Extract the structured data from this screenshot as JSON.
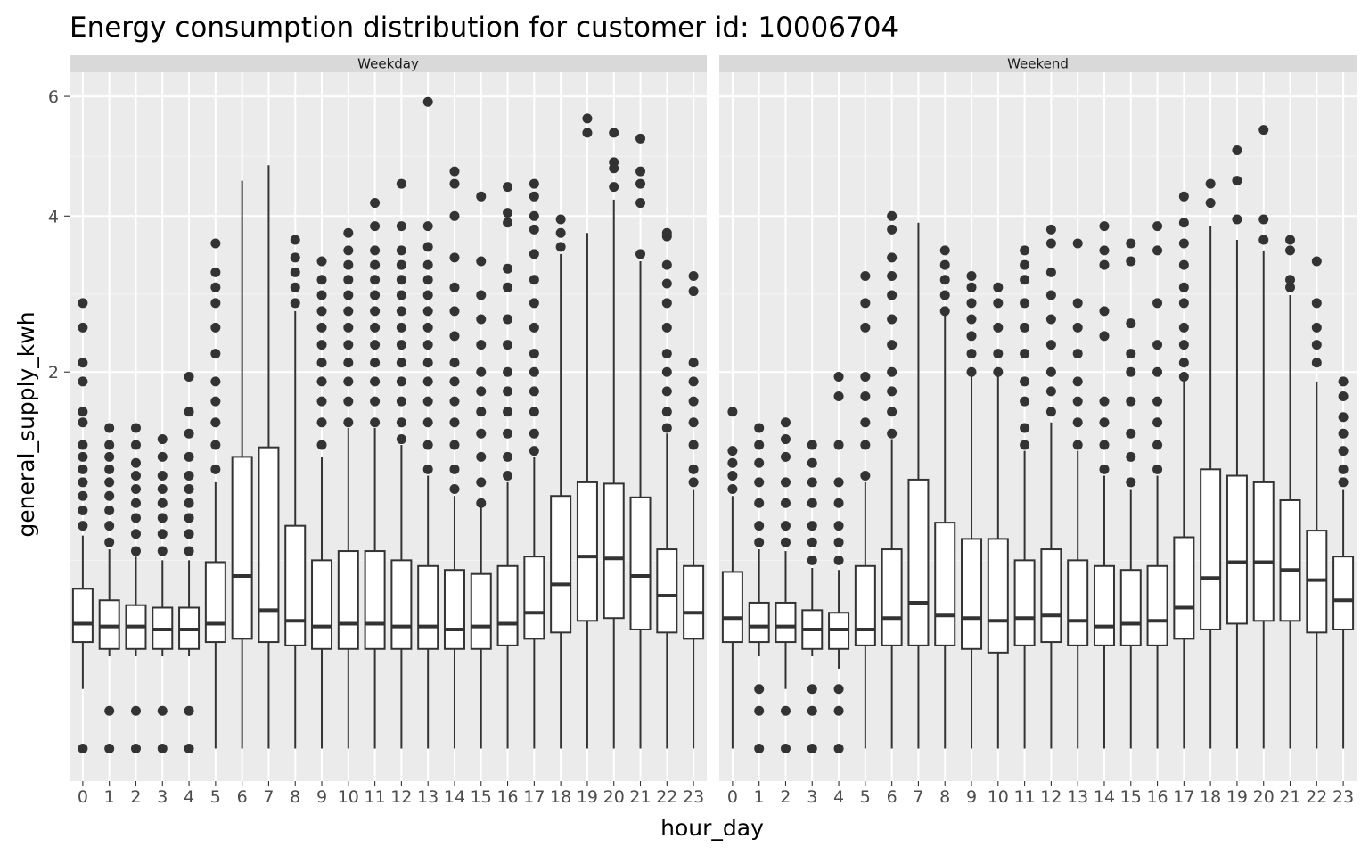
{
  "chart_data": {
    "type": "boxplot",
    "title": "Energy consumption distribution for customer id: 10006704",
    "xlabel": "hour_day",
    "ylabel": "general_supply_kwh",
    "y_scale": "sqrt",
    "ylim": [
      0,
      6.6
    ],
    "y_ticks": [
      2,
      4,
      6
    ],
    "grid": true,
    "categories": [
      "0",
      "1",
      "2",
      "3",
      "4",
      "5",
      "6",
      "7",
      "8",
      "9",
      "10",
      "11",
      "12",
      "13",
      "14",
      "15",
      "16",
      "17",
      "18",
      "19",
      "20",
      "21",
      "22",
      "23"
    ],
    "panels": [
      {
        "name": "Weekday",
        "boxes": [
          {
            "hour": "0",
            "lower": 0.05,
            "q1": 0.16,
            "median": 0.22,
            "q3": 0.36,
            "upper": 0.64,
            "outliers": [
              0.0,
              0.7,
              0.8,
              0.9,
              1.0,
              1.1,
              1.2,
              1.3,
              1.5,
              1.6,
              1.9,
              2.1,
              2.5,
              2.8
            ]
          },
          {
            "hour": "1",
            "lower": 0.12,
            "q1": 0.14,
            "median": 0.21,
            "q3": 0.31,
            "upper": 0.56,
            "outliers": [
              0.0,
              0.02,
              0.6,
              0.7,
              0.8,
              0.9,
              1.0,
              1.1,
              1.2,
              1.3,
              1.45
            ]
          },
          {
            "hour": "2",
            "lower": 0.12,
            "q1": 0.14,
            "median": 0.21,
            "q3": 0.29,
            "upper": 0.52,
            "outliers": [
              0.0,
              0.02,
              0.55,
              0.65,
              0.75,
              0.85,
              0.95,
              1.05,
              1.15,
              1.3,
              1.45
            ]
          },
          {
            "hour": "3",
            "lower": 0.12,
            "q1": 0.14,
            "median": 0.2,
            "q3": 0.28,
            "upper": 0.5,
            "outliers": [
              0.0,
              0.02,
              0.55,
              0.65,
              0.75,
              0.85,
              0.95,
              1.05,
              1.2,
              1.35
            ]
          },
          {
            "hour": "4",
            "lower": 0.12,
            "q1": 0.14,
            "median": 0.2,
            "q3": 0.28,
            "upper": 0.5,
            "outliers": [
              0.0,
              0.02,
              0.55,
              0.65,
              0.75,
              0.85,
              0.95,
              1.05,
              1.2,
              1.4,
              1.6,
              1.95
            ]
          },
          {
            "hour": "5",
            "lower": 0.0,
            "q1": 0.16,
            "median": 0.22,
            "q3": 0.49,
            "upper": 1.0,
            "outliers": [
              1.1,
              1.3,
              1.5,
              1.7,
              1.9,
              2.2,
              2.5,
              2.8,
              3.0,
              3.2,
              3.6
            ]
          },
          {
            "hour": "6",
            "lower": 0.0,
            "q1": 0.17,
            "median": 0.42,
            "q3": 1.2,
            "upper": 4.55,
            "outliers": []
          },
          {
            "hour": "7",
            "lower": 0.0,
            "q1": 0.16,
            "median": 0.27,
            "q3": 1.28,
            "upper": 4.8,
            "outliers": []
          },
          {
            "hour": "8",
            "lower": 0.0,
            "q1": 0.15,
            "median": 0.23,
            "q3": 0.7,
            "upper": 2.7,
            "outliers": [
              2.8,
              3.0,
              3.2,
              3.4,
              3.65
            ]
          },
          {
            "hour": "9",
            "lower": 0.0,
            "q1": 0.14,
            "median": 0.21,
            "q3": 0.5,
            "upper": 1.2,
            "outliers": [
              1.3,
              1.5,
              1.7,
              1.9,
              2.1,
              2.3,
              2.5,
              2.7,
              2.9,
              3.1,
              3.35
            ]
          },
          {
            "hour": "10",
            "lower": 0.0,
            "q1": 0.14,
            "median": 0.22,
            "q3": 0.55,
            "upper": 1.45,
            "outliers": [
              1.5,
              1.7,
              1.9,
              2.1,
              2.3,
              2.5,
              2.7,
              2.9,
              3.1,
              3.3,
              3.5,
              3.75
            ]
          },
          {
            "hour": "11",
            "lower": 0.0,
            "q1": 0.14,
            "median": 0.22,
            "q3": 0.55,
            "upper": 1.45,
            "outliers": [
              1.5,
              1.7,
              1.9,
              2.1,
              2.3,
              2.5,
              2.7,
              2.9,
              3.1,
              3.3,
              3.5,
              3.85,
              4.2
            ]
          },
          {
            "hour": "12",
            "lower": 0.0,
            "q1": 0.14,
            "median": 0.21,
            "q3": 0.5,
            "upper": 1.3,
            "outliers": [
              1.35,
              1.5,
              1.7,
              1.9,
              2.1,
              2.3,
              2.5,
              2.7,
              2.9,
              3.1,
              3.3,
              3.5,
              3.85,
              4.5
            ]
          },
          {
            "hour": "13",
            "lower": 0.0,
            "q1": 0.14,
            "median": 0.21,
            "q3": 0.47,
            "upper": 1.05,
            "outliers": [
              1.1,
              1.3,
              1.5,
              1.7,
              1.9,
              2.1,
              2.3,
              2.5,
              2.7,
              2.9,
              3.1,
              3.3,
              3.55,
              3.85,
              5.9
            ]
          },
          {
            "hour": "14",
            "lower": 0.0,
            "q1": 0.14,
            "median": 0.2,
            "q3": 0.45,
            "upper": 0.9,
            "outliers": [
              0.95,
              1.1,
              1.3,
              1.5,
              1.7,
              1.9,
              2.1,
              2.4,
              2.7,
              3.0,
              3.4,
              4.0,
              4.5,
              4.7
            ]
          },
          {
            "hour": "15",
            "lower": 0.0,
            "q1": 0.14,
            "median": 0.21,
            "q3": 0.43,
            "upper": 0.82,
            "outliers": [
              0.85,
              1.0,
              1.2,
              1.4,
              1.6,
              1.8,
              2.0,
              2.3,
              2.6,
              2.9,
              3.35,
              4.3
            ]
          },
          {
            "hour": "16",
            "lower": 0.0,
            "q1": 0.15,
            "median": 0.22,
            "q3": 0.47,
            "upper": 1.0,
            "outliers": [
              1.05,
              1.2,
              1.4,
              1.6,
              1.8,
              2.0,
              2.3,
              2.6,
              3.0,
              3.25,
              3.9,
              4.05,
              4.45
            ]
          },
          {
            "hour": "17",
            "lower": 0.0,
            "q1": 0.17,
            "median": 0.26,
            "q3": 0.52,
            "upper": 1.2,
            "outliers": [
              1.25,
              1.4,
              1.6,
              1.8,
              2.0,
              2.2,
              2.5,
              2.8,
              3.1,
              3.45,
              3.8,
              4.0,
              4.3,
              4.5
            ]
          },
          {
            "hour": "18",
            "lower": 0.0,
            "q1": 0.19,
            "median": 0.38,
            "q3": 0.9,
            "upper": 3.45,
            "outliers": [
              3.55,
              3.75,
              3.95
            ]
          },
          {
            "hour": "19",
            "lower": 0.0,
            "q1": 0.23,
            "median": 0.52,
            "q3": 1.0,
            "upper": 3.75,
            "outliers": [
              5.35,
              5.6
            ]
          },
          {
            "hour": "20",
            "lower": 0.0,
            "q1": 0.24,
            "median": 0.51,
            "q3": 0.99,
            "upper": 4.25,
            "outliers": [
              4.45,
              4.75,
              4.85,
              5.35
            ]
          },
          {
            "hour": "21",
            "lower": 0.0,
            "q1": 0.2,
            "median": 0.42,
            "q3": 0.89,
            "upper": 3.35,
            "outliers": [
              3.45,
              4.2,
              4.5,
              4.7,
              5.25
            ]
          },
          {
            "hour": "22",
            "lower": 0.0,
            "q1": 0.19,
            "median": 0.33,
            "q3": 0.56,
            "upper": 1.4,
            "outliers": [
              1.45,
              1.6,
              1.8,
              2.0,
              2.2,
              2.5,
              2.8,
              3.05,
              3.3,
              3.7,
              3.75
            ]
          },
          {
            "hour": "23",
            "lower": 0.0,
            "q1": 0.17,
            "median": 0.26,
            "q3": 0.47,
            "upper": 0.95,
            "outliers": [
              1.0,
              1.1,
              1.3,
              1.5,
              1.7,
              1.9,
              2.1,
              2.95,
              3.15
            ]
          }
        ]
      },
      {
        "name": "Weekend",
        "boxes": [
          {
            "hour": "0",
            "lower": 0.0,
            "q1": 0.16,
            "median": 0.24,
            "q3": 0.44,
            "upper": 0.9,
            "outliers": [
              0.95,
              1.05,
              1.15,
              1.25,
              1.6
            ]
          },
          {
            "hour": "1",
            "lower": 0.12,
            "q1": 0.16,
            "median": 0.21,
            "q3": 0.3,
            "upper": 0.56,
            "outliers": [
              0.0,
              0.02,
              0.05,
              0.6,
              0.7,
              0.85,
              1.0,
              1.15,
              1.3,
              1.45
            ]
          },
          {
            "hour": "2",
            "lower": 0.05,
            "q1": 0.16,
            "median": 0.21,
            "q3": 0.3,
            "upper": 0.55,
            "outliers": [
              0.0,
              0.02,
              0.6,
              0.7,
              0.85,
              1.0,
              1.2,
              1.35,
              1.5
            ]
          },
          {
            "hour": "3",
            "lower": 0.12,
            "q1": 0.14,
            "median": 0.2,
            "q3": 0.27,
            "upper": 0.46,
            "outliers": [
              0.0,
              0.02,
              0.05,
              0.5,
              0.6,
              0.7,
              0.85,
              1.0,
              1.15,
              1.3
            ]
          },
          {
            "hour": "4",
            "lower": 0.09,
            "q1": 0.14,
            "median": 0.2,
            "q3": 0.26,
            "upper": 0.45,
            "outliers": [
              0.0,
              0.02,
              0.05,
              0.5,
              0.6,
              0.7,
              0.85,
              1.0,
              1.3,
              1.75,
              1.95
            ]
          },
          {
            "hour": "5",
            "lower": 0.0,
            "q1": 0.15,
            "median": 0.2,
            "q3": 0.47,
            "upper": 1.0,
            "outliers": [
              1.05,
              1.3,
              1.5,
              1.75,
              1.95,
              2.5,
              2.8,
              3.15
            ]
          },
          {
            "hour": "6",
            "lower": 0.0,
            "q1": 0.15,
            "median": 0.24,
            "q3": 0.56,
            "upper": 1.35,
            "outliers": [
              1.4,
              1.6,
              1.8,
              2.0,
              2.3,
              2.6,
              2.9,
              3.15,
              3.4,
              3.8,
              4.0
            ]
          },
          {
            "hour": "7",
            "lower": 0.0,
            "q1": 0.15,
            "median": 0.3,
            "q3": 1.02,
            "upper": 3.9,
            "outliers": []
          },
          {
            "hour": "8",
            "lower": 0.0,
            "q1": 0.15,
            "median": 0.25,
            "q3": 0.72,
            "upper": 2.65,
            "outliers": [
              2.7,
              2.9,
              3.1,
              3.3,
              3.5
            ]
          },
          {
            "hour": "9",
            "lower": 0.0,
            "q1": 0.14,
            "median": 0.24,
            "q3": 0.62,
            "upper": 1.95,
            "outliers": [
              2.0,
              2.2,
              2.4,
              2.6,
              2.8,
              3.0,
              3.15
            ]
          },
          {
            "hour": "10",
            "lower": 0.0,
            "q1": 0.13,
            "median": 0.23,
            "q3": 0.62,
            "upper": 1.95,
            "outliers": [
              2.0,
              2.2,
              2.5,
              2.8,
              3.0
            ]
          },
          {
            "hour": "11",
            "lower": 0.0,
            "q1": 0.15,
            "median": 0.24,
            "q3": 0.5,
            "upper": 1.25,
            "outliers": [
              1.3,
              1.45,
              1.7,
              1.9,
              2.2,
              2.5,
              2.8,
              3.1,
              3.3,
              3.5
            ]
          },
          {
            "hour": "12",
            "lower": 0.0,
            "q1": 0.16,
            "median": 0.25,
            "q3": 0.56,
            "upper": 1.5,
            "outliers": [
              1.6,
              1.8,
              2.0,
              2.3,
              2.6,
              2.9,
              3.2,
              3.6,
              3.8
            ]
          },
          {
            "hour": "13",
            "lower": 0.0,
            "q1": 0.15,
            "median": 0.23,
            "q3": 0.5,
            "upper": 1.25,
            "outliers": [
              1.3,
              1.5,
              1.7,
              1.9,
              2.2,
              2.5,
              2.8,
              3.6
            ]
          },
          {
            "hour": "14",
            "lower": 0.0,
            "q1": 0.15,
            "median": 0.21,
            "q3": 0.47,
            "upper": 1.05,
            "outliers": [
              1.1,
              1.3,
              1.5,
              1.7,
              2.4,
              2.7,
              3.3,
              3.5,
              3.85
            ]
          },
          {
            "hour": "15",
            "lower": 0.0,
            "q1": 0.15,
            "median": 0.22,
            "q3": 0.45,
            "upper": 0.95,
            "outliers": [
              1.0,
              1.2,
              1.4,
              1.7,
              2.0,
              2.2,
              2.55,
              3.35,
              3.6
            ]
          },
          {
            "hour": "16",
            "lower": 0.0,
            "q1": 0.15,
            "median": 0.23,
            "q3": 0.47,
            "upper": 1.05,
            "outliers": [
              1.1,
              1.3,
              1.5,
              1.7,
              2.0,
              2.3,
              2.8,
              3.5,
              3.85
            ]
          },
          {
            "hour": "17",
            "lower": 0.0,
            "q1": 0.17,
            "median": 0.28,
            "q3": 0.63,
            "upper": 1.9,
            "outliers": [
              1.95,
              2.1,
              2.3,
              2.5,
              2.8,
              3.0,
              3.3,
              3.6,
              3.9,
              4.3
            ]
          },
          {
            "hour": "18",
            "lower": 0.0,
            "q1": 0.2,
            "median": 0.41,
            "q3": 1.1,
            "upper": 3.85,
            "outliers": [
              4.2,
              4.5
            ]
          },
          {
            "hour": "19",
            "lower": 0.0,
            "q1": 0.22,
            "median": 0.49,
            "q3": 1.05,
            "upper": 3.65,
            "outliers": [
              3.95,
              4.55,
              5.05
            ]
          },
          {
            "hour": "20",
            "lower": 0.0,
            "q1": 0.23,
            "median": 0.49,
            "q3": 1.0,
            "upper": 3.5,
            "outliers": [
              3.65,
              3.95,
              5.4
            ]
          },
          {
            "hour": "21",
            "lower": 0.0,
            "q1": 0.23,
            "median": 0.45,
            "q3": 0.87,
            "upper": 2.9,
            "outliers": [
              3.0,
              3.1,
              3.5,
              3.65
            ]
          },
          {
            "hour": "22",
            "lower": 0.0,
            "q1": 0.19,
            "median": 0.4,
            "q3": 0.67,
            "upper": 1.9,
            "outliers": [
              2.1,
              2.3,
              2.5,
              2.8,
              3.35
            ]
          },
          {
            "hour": "23",
            "lower": 0.0,
            "q1": 0.2,
            "median": 0.31,
            "q3": 0.52,
            "upper": 0.95,
            "outliers": [
              1.0,
              1.1,
              1.25,
              1.4,
              1.55,
              1.75,
              1.9
            ]
          }
        ]
      }
    ]
  }
}
